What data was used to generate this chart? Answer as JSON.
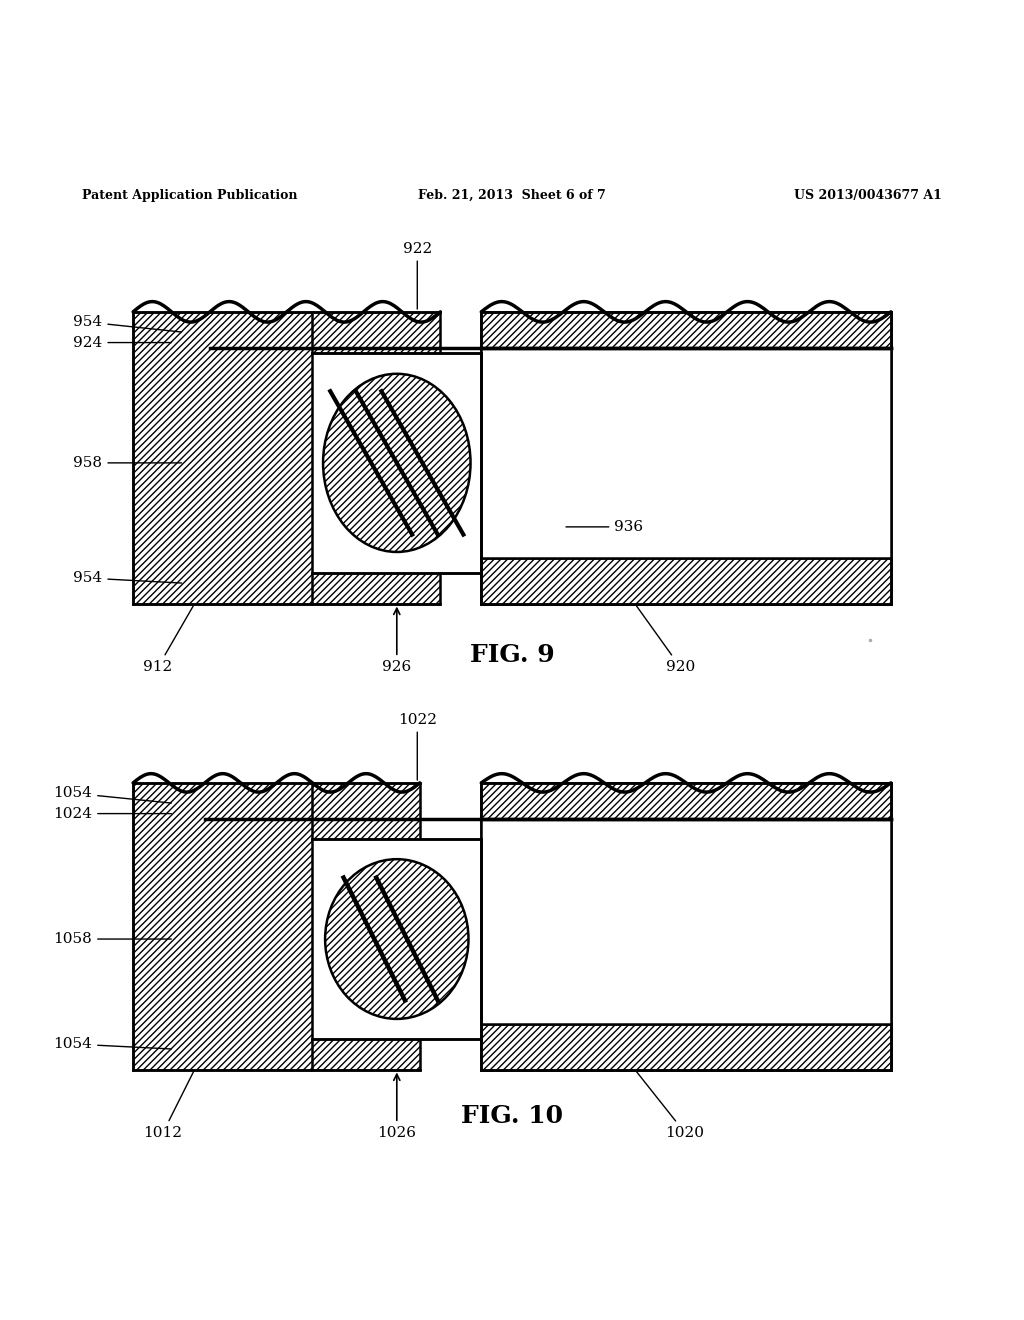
{
  "bg_color": "#ffffff",
  "fig_width": 10.24,
  "fig_height": 13.2,
  "header_left": "Patent Application Publication",
  "header_mid": "Feb. 21, 2013  Sheet 6 of 7",
  "header_right": "US 2013/0043677 A1",
  "fig9_label": "FIG. 9",
  "fig10_label": "FIG. 10",
  "line_color": "#000000"
}
